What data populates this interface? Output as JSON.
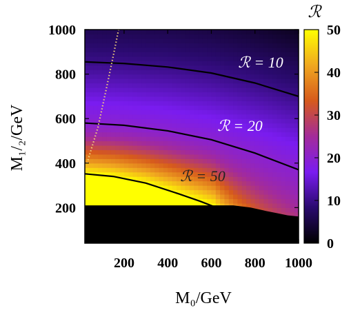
{
  "chart_data": {
    "type": "heatmap",
    "xlabel": "M₀/GeV",
    "ylabel": "M₁/₂/GeV",
    "colorbar_label": "ℛ",
    "xlim": [
      20,
      1000
    ],
    "ylim": [
      40,
      1000
    ],
    "zlim": [
      0,
      50
    ],
    "x_ticks": [
      200,
      400,
      600,
      800,
      1000
    ],
    "y_ticks": [
      200,
      400,
      600,
      800,
      1000
    ],
    "colorbar_ticks": [
      0,
      10,
      20,
      30,
      40,
      50
    ],
    "colormap": [
      "#000000",
      "#2a0a6e",
      "#7a1cf0",
      "#a32b9a",
      "#d65a1c",
      "#f0a820",
      "#ffff00"
    ],
    "contours": [
      {
        "label": "ℛ = 10",
        "level": 10,
        "points": [
          [
            20,
            855
          ],
          [
            200,
            848
          ],
          [
            400,
            832
          ],
          [
            600,
            805
          ],
          [
            800,
            760
          ],
          [
            1000,
            700
          ]
        ]
      },
      {
        "label": "ℛ = 20",
        "level": 20,
        "points": [
          [
            20,
            580
          ],
          [
            200,
            570
          ],
          [
            400,
            545
          ],
          [
            600,
            505
          ],
          [
            800,
            445
          ],
          [
            1000,
            370
          ]
        ]
      },
      {
        "label": "ℛ = 50",
        "level": 50,
        "points": [
          [
            20,
            352
          ],
          [
            150,
            340
          ],
          [
            300,
            310
          ],
          [
            450,
            262
          ],
          [
            550,
            228
          ],
          [
            610,
            205
          ]
        ]
      }
    ],
    "dotted_boundary": [
      [
        30,
        400
      ],
      [
        80,
        560
      ],
      [
        120,
        740
      ],
      [
        150,
        880
      ],
      [
        175,
        1000
      ]
    ],
    "excluded_region_color": "#000000",
    "excluded_boundary": [
      [
        20,
        210
      ],
      [
        700,
        210
      ],
      [
        780,
        200
      ],
      [
        850,
        185
      ],
      [
        900,
        175
      ],
      [
        950,
        165
      ],
      [
        1000,
        160
      ]
    ]
  }
}
